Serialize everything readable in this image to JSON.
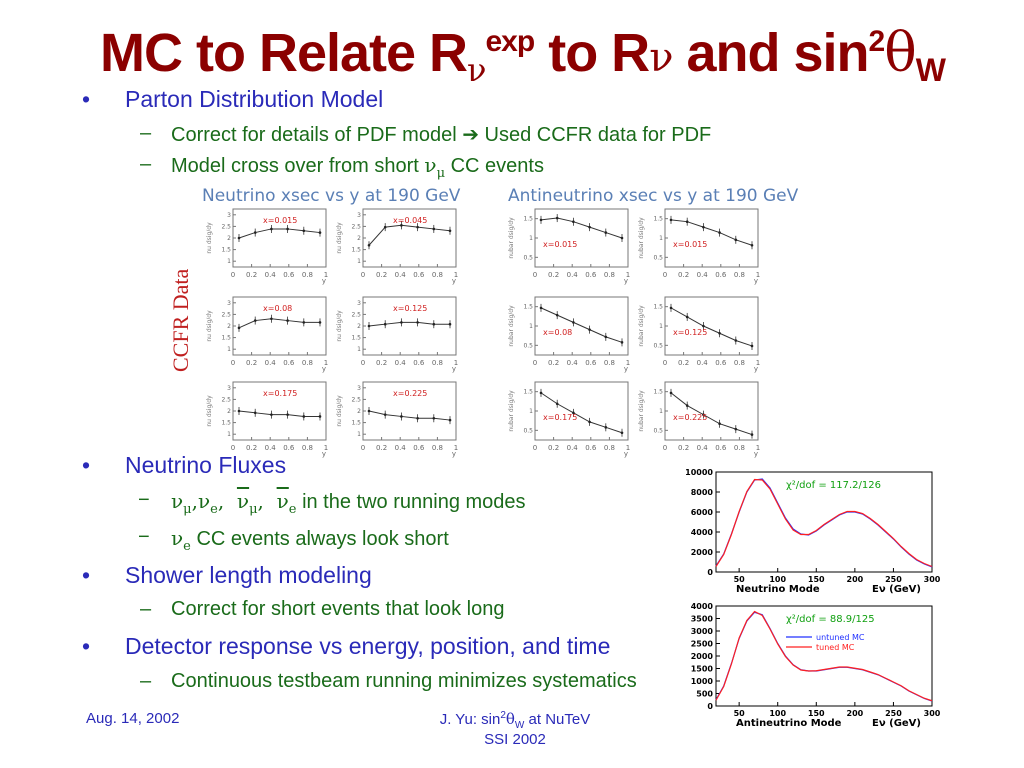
{
  "slide": {
    "title": {
      "part1": "MC to Relate R",
      "nu1": "ν",
      "exp": "exp",
      "part2": " to R",
      "nu2": "ν",
      "part3": " and sin",
      "sq": "2",
      "theta": "θ",
      "w": "W"
    },
    "bullets": {
      "parton": "Parton Distribution Model",
      "pdf_a": "Correct for details of PDF model",
      "pdf_arrow": "➔",
      "pdf_b": " Used CCFR data for PDF",
      "crossover_a": "Model cross over from short ",
      "crossover_nu": "ν",
      "crossover_mu": "μ",
      "crossover_b": " CC events",
      "fluxes": "Neutrino Fluxes",
      "flux_modes": "in the two running modes",
      "nue_a": "CC events always look short",
      "shower": "Shower length modeling",
      "shower_sub": "Correct for short events that look long",
      "detector": "Detector response vs energy, position, and time",
      "detector_sub": "Continuous testbeam running minimizes systematics"
    },
    "footer": {
      "date": "Aug. 14, 2002",
      "author_a": "J. Yu: sin",
      "author_sq": "2",
      "author_theta": "θ",
      "author_w": "W",
      "author_b": " at NuTeV",
      "conf": "SSI 2002"
    }
  },
  "panels": {
    "neutrino_head": "Neutrino xsec vs y at 190 GeV",
    "antineutrino_head": "Antineutrino xsec vs y at 190 GeV",
    "ccfr_label": "CCFR Data",
    "x_label": "y",
    "y_label_nu": "nu dsig/dy",
    "y_label_anu": "nubar dsig/dy",
    "nu_x_ticks": [
      "0",
      "0.2",
      "0.4",
      "0.6",
      "0.8",
      "1"
    ],
    "nu_y_ticks": [
      "1",
      "1.5",
      "2",
      "2.5",
      "3"
    ],
    "anu_x_ticks": [
      "0",
      "0.2",
      "0.4",
      "0.6",
      "0.8",
      "1"
    ],
    "anu_y_ticks": [
      "0.5",
      "1",
      "1.5"
    ],
    "nu_xs": [
      "x=0.015",
      "x=0.045",
      "x=0.08",
      "x=0.125",
      "x=0.175",
      "x=0.225"
    ],
    "anu_xs": [
      "x=0.015",
      "x=0.015",
      "x=0.08",
      "x=0.125",
      "x=0.175",
      "x=0.225"
    ]
  },
  "chart_data": [
    {
      "type": "line",
      "title": "",
      "xlabel": "Neutrino Mode",
      "xunit_label": "E_ν (GeV)",
      "annotation": "χ²/dof = 117.2/126",
      "xlim": [
        20,
        300
      ],
      "ylim": [
        0,
        10000
      ],
      "x_ticks": [
        "50",
        "100",
        "150",
        "200",
        "250",
        "300"
      ],
      "y_ticks": [
        "0",
        "2000",
        "4000",
        "6000",
        "8000",
        "10000"
      ],
      "x": [
        20,
        30,
        40,
        50,
        60,
        70,
        80,
        90,
        100,
        110,
        120,
        130,
        140,
        150,
        160,
        170,
        180,
        190,
        200,
        210,
        220,
        230,
        240,
        250,
        260,
        270,
        280,
        290,
        300
      ],
      "series": [
        {
          "name": "",
          "color": "#2030ff",
          "values": [
            600,
            1800,
            3800,
            6000,
            8000,
            9200,
            9300,
            8400,
            6900,
            5400,
            4300,
            3800,
            3700,
            4100,
            4700,
            5200,
            5700,
            6000,
            6000,
            5800,
            5300,
            4700,
            4000,
            3300,
            2500,
            1800,
            1200,
            800,
            500
          ]
        },
        {
          "name": "",
          "color": "#ff2020",
          "values": [
            550,
            1750,
            3750,
            6050,
            8050,
            9250,
            9200,
            8300,
            6800,
            5300,
            4200,
            3750,
            3750,
            4150,
            4750,
            5250,
            5750,
            6050,
            6050,
            5850,
            5350,
            4750,
            4050,
            3350,
            2550,
            1850,
            1250,
            850,
            550
          ]
        }
      ]
    },
    {
      "type": "line",
      "title": "",
      "xlabel": "Antineutrino Mode",
      "xunit_label": "E_ν (GeV)",
      "annotation": "χ²/dof = 88.9/125",
      "legend": "top-right",
      "xlim": [
        20,
        300
      ],
      "ylim": [
        0,
        4000
      ],
      "x_ticks": [
        "50",
        "100",
        "150",
        "200",
        "250",
        "300"
      ],
      "y_ticks": [
        "0",
        "500",
        "1000",
        "1500",
        "2000",
        "2500",
        "3000",
        "3500",
        "4000"
      ],
      "x": [
        20,
        30,
        40,
        50,
        60,
        70,
        80,
        90,
        100,
        110,
        120,
        130,
        140,
        150,
        160,
        170,
        180,
        190,
        200,
        210,
        220,
        230,
        240,
        250,
        260,
        270,
        280,
        290,
        300
      ],
      "series": [
        {
          "name": "untuned MC",
          "color": "#2030ff",
          "values": [
            250,
            800,
            1700,
            2700,
            3400,
            3750,
            3650,
            3100,
            2500,
            2000,
            1650,
            1450,
            1400,
            1400,
            1450,
            1500,
            1550,
            1550,
            1500,
            1450,
            1350,
            1250,
            1100,
            950,
            800,
            600,
            450,
            300,
            200
          ]
        },
        {
          "name": "tuned MC",
          "color": "#ff2020",
          "values": [
            230,
            780,
            1680,
            2720,
            3420,
            3780,
            3620,
            3080,
            2480,
            1980,
            1640,
            1440,
            1400,
            1410,
            1460,
            1510,
            1560,
            1560,
            1510,
            1460,
            1360,
            1260,
            1110,
            960,
            810,
            610,
            460,
            310,
            210
          ]
        }
      ]
    }
  ]
}
